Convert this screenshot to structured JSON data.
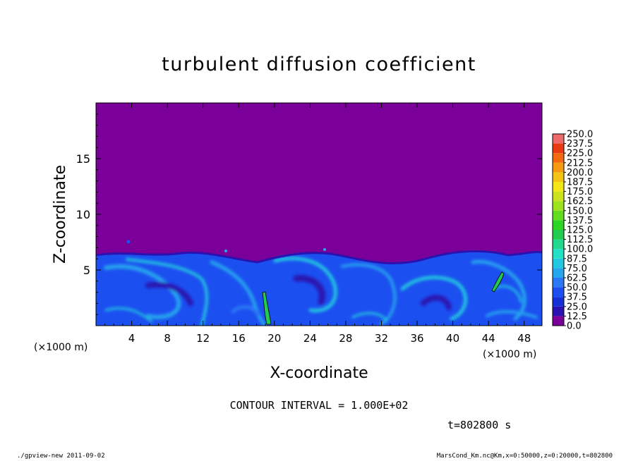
{
  "chart_data": {
    "type": "heatmap",
    "title": "turbulent diffusion coefficient",
    "xlabel": "X-coordinate",
    "ylabel": "Z-coordinate",
    "x_unit": "(×1000 m)",
    "x_unit_right": "(×1000 m)",
    "xlim": [
      0,
      50
    ],
    "ylim": [
      0,
      20
    ],
    "x_ticks": [
      "4",
      "8",
      "12",
      "16",
      "20",
      "24",
      "28",
      "32",
      "36",
      "40",
      "44",
      "48"
    ],
    "y_ticks": [
      "5",
      "10",
      "15"
    ],
    "colorbar": {
      "levels": [
        "0.0",
        "12.5",
        "25.0",
        "37.5",
        "50.0",
        "62.5",
        "75.0",
        "87.5",
        "100.0",
        "112.5",
        "125.0",
        "137.5",
        "150.0",
        "162.5",
        "175.0",
        "187.5",
        "200.0",
        "212.5",
        "225.0",
        "237.5",
        "250.0"
      ],
      "colors": [
        "#7a0099",
        "#2a12b0",
        "#1530d6",
        "#1c4ff0",
        "#2a78f5",
        "#25a6ee",
        "#22c8e0",
        "#22e0c4",
        "#22d88e",
        "#22cc4e",
        "#2ed624",
        "#62dc1e",
        "#9ce21e",
        "#cde21e",
        "#f5e61a",
        "#f5c216",
        "#f59a12",
        "#f26a10",
        "#ea3a14",
        "#ee6a6a"
      ]
    },
    "background_value": "0.0",
    "contour_interval": "CONTOUR INTERVAL = 1.000E+02",
    "time": "t=802800 s"
  },
  "footer": {
    "left": "./gpview-new   2011-09-02",
    "right": "MarsCond_Km.nc@Km,x=0:50000,z=0:20000,t=802800"
  }
}
